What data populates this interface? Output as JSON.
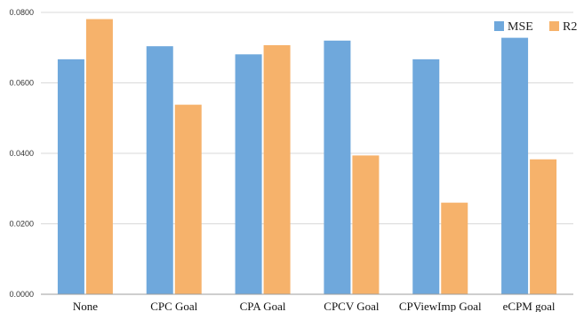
{
  "chart_data": {
    "type": "bar",
    "title": "",
    "xlabel": "",
    "ylabel": "",
    "categories": [
      "None",
      "CPC Goal",
      "CPA Goal",
      "CPCV Goal",
      "CPViewImp Goal",
      "eCPM goal"
    ],
    "series": [
      {
        "name": "MSE",
        "color": "#6FA8DC",
        "values": [
          0.0667,
          0.0704,
          0.0681,
          0.072,
          0.0667,
          0.0728
        ]
      },
      {
        "name": "R2",
        "color": "#F6B26B",
        "values": [
          0.0781,
          0.0538,
          0.0707,
          0.0394,
          0.026,
          0.0383
        ]
      }
    ],
    "yticks": [
      "0.0000",
      "0.0200",
      "0.0400",
      "0.0600",
      "0.0800"
    ],
    "ylim": [
      0,
      0.08
    ],
    "grid": true,
    "legend_position": "top-right"
  }
}
